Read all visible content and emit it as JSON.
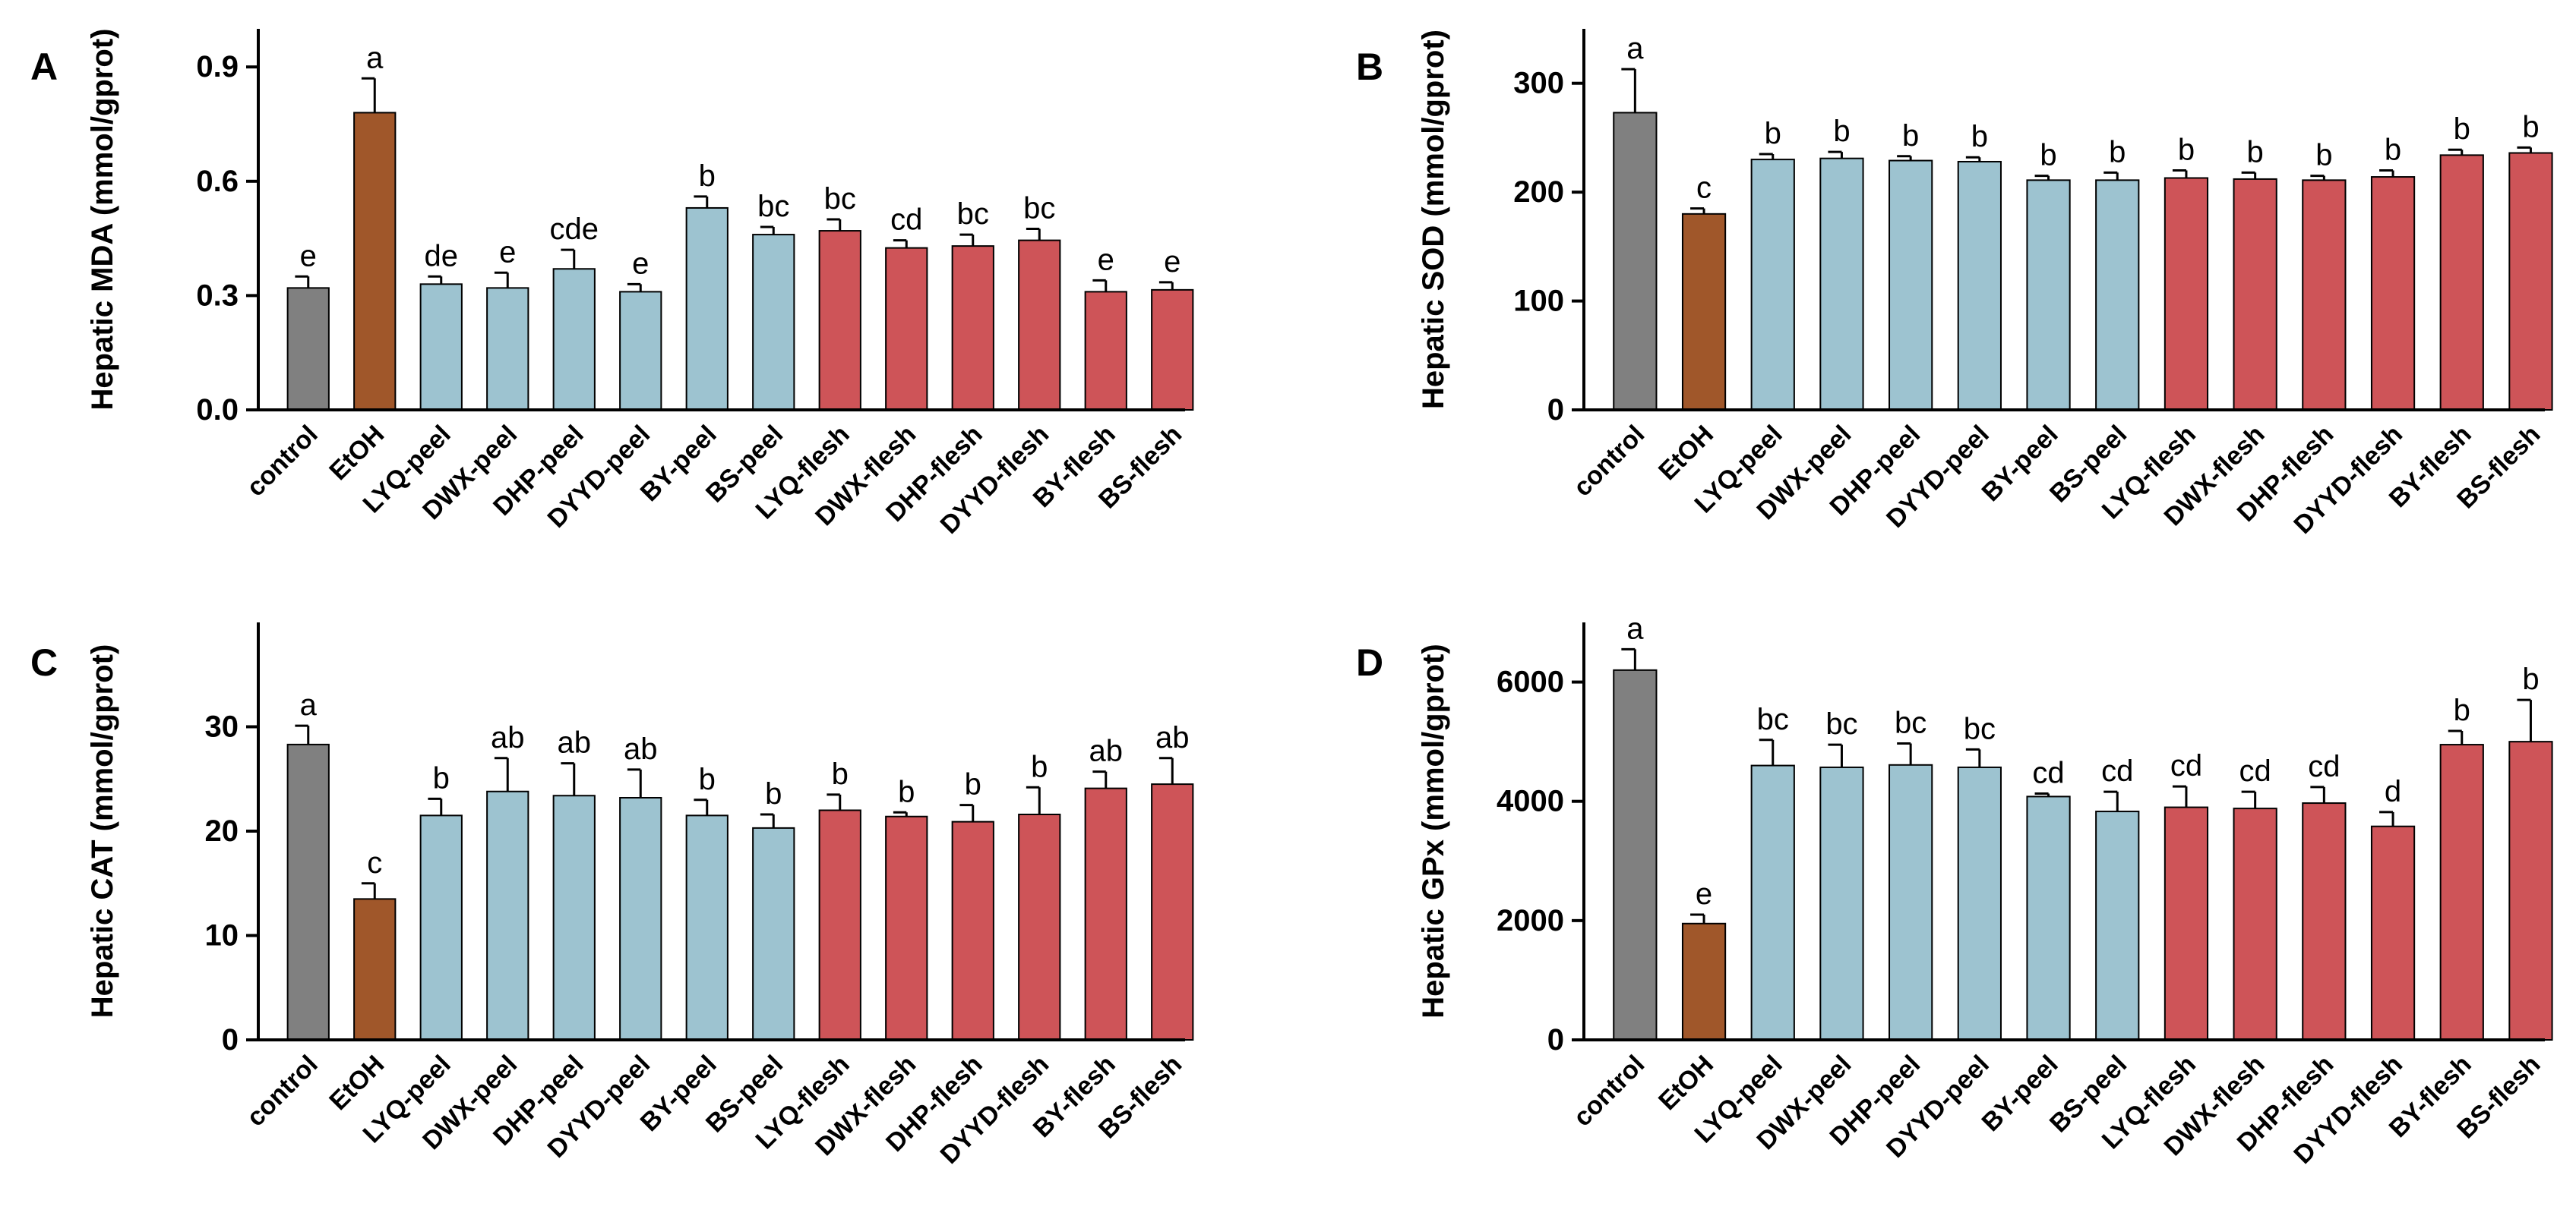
{
  "colors": {
    "control": "#808080",
    "etoh": "#A0572A",
    "peel": "#9DC3D0",
    "flesh": "#CE5458",
    "axis": "#000000"
  },
  "chart_data": [
    {
      "panel": "A",
      "type": "bar",
      "ylabel": "Hepatic MDA (mmol/gprot)",
      "ylim": [
        0,
        1.0
      ],
      "yticks": [
        0.0,
        0.3,
        0.6,
        0.9
      ],
      "ytick_labels": [
        "0.0",
        "0.3",
        "0.6",
        "0.9"
      ],
      "categories": [
        "control",
        "EtOH",
        "LYQ-peel",
        "DWX-peel",
        "DHP-peel",
        "DYYD-peel",
        "BY-peel",
        "BS-peel",
        "LYQ-flesh",
        "DWX-flesh",
        "DHP-flesh",
        "DYYD-flesh",
        "BY-flesh",
        "BS-flesh"
      ],
      "groups": [
        "control",
        "etoh",
        "peel",
        "peel",
        "peel",
        "peel",
        "peel",
        "peel",
        "flesh",
        "flesh",
        "flesh",
        "flesh",
        "flesh",
        "flesh"
      ],
      "values": [
        0.32,
        0.78,
        0.33,
        0.32,
        0.37,
        0.31,
        0.53,
        0.46,
        0.47,
        0.425,
        0.43,
        0.445,
        0.31,
        0.315
      ],
      "errors": [
        0.03,
        0.09,
        0.02,
        0.04,
        0.05,
        0.02,
        0.03,
        0.02,
        0.03,
        0.02,
        0.03,
        0.03,
        0.03,
        0.02
      ],
      "sig_labels": [
        "e",
        "a",
        "de",
        "e",
        "cde",
        "e",
        "b",
        "bc",
        "bc",
        "cd",
        "bc",
        "bc",
        "e",
        "e"
      ]
    },
    {
      "panel": "B",
      "type": "bar",
      "ylabel": "Hepatic SOD (mmol/gprot)",
      "ylim": [
        0,
        350
      ],
      "yticks": [
        0,
        100,
        200,
        300
      ],
      "ytick_labels": [
        "0",
        "100",
        "200",
        "300"
      ],
      "categories": [
        "control",
        "EtOH",
        "LYQ-peel",
        "DWX-peel",
        "DHP-peel",
        "DYYD-peel",
        "BY-peel",
        "BS-peel",
        "LYQ-flesh",
        "DWX-flesh",
        "DHP-flesh",
        "DYYD-flesh",
        "BY-flesh",
        "BS-flesh"
      ],
      "groups": [
        "control",
        "etoh",
        "peel",
        "peel",
        "peel",
        "peel",
        "peel",
        "peel",
        "flesh",
        "flesh",
        "flesh",
        "flesh",
        "flesh",
        "flesh"
      ],
      "values": [
        273,
        180,
        230,
        231,
        229,
        228,
        211,
        211,
        213,
        212,
        211,
        214,
        234,
        236
      ],
      "errors": [
        40,
        5,
        5,
        6,
        4,
        4,
        4,
        7,
        7,
        6,
        4,
        6,
        5,
        5
      ],
      "sig_labels": [
        "a",
        "c",
        "b",
        "b",
        "b",
        "b",
        "b",
        "b",
        "b",
        "b",
        "b",
        "b",
        "b",
        "b"
      ]
    },
    {
      "panel": "C",
      "type": "bar",
      "ylabel": "Hepatic CAT (mmol/gprot)",
      "ylim": [
        0,
        40
      ],
      "yticks": [
        0,
        10,
        20,
        30
      ],
      "ytick_labels": [
        "0",
        "10",
        "20",
        "30"
      ],
      "categories": [
        "control",
        "EtOH",
        "LYQ-peel",
        "DWX-peel",
        "DHP-peel",
        "DYYD-peel",
        "BY-peel",
        "BS-peel",
        "LYQ-flesh",
        "DWX-flesh",
        "DHP-flesh",
        "DYYD-flesh",
        "BY-flesh",
        "BS-flesh"
      ],
      "groups": [
        "control",
        "etoh",
        "peel",
        "peel",
        "peel",
        "peel",
        "peel",
        "peel",
        "flesh",
        "flesh",
        "flesh",
        "flesh",
        "flesh",
        "flesh"
      ],
      "values": [
        28.3,
        13.5,
        21.5,
        23.8,
        23.4,
        23.2,
        21.5,
        20.3,
        22.0,
        21.4,
        20.9,
        21.6,
        24.1,
        24.5
      ],
      "errors": [
        1.8,
        1.5,
        1.6,
        3.2,
        3.1,
        2.7,
        1.5,
        1.3,
        1.5,
        0.4,
        1.6,
        2.6,
        1.6,
        2.5
      ],
      "sig_labels": [
        "a",
        "c",
        "b",
        "ab",
        "ab",
        "ab",
        "b",
        "b",
        "b",
        "b",
        "b",
        "b",
        "ab",
        "ab"
      ]
    },
    {
      "panel": "D",
      "type": "bar",
      "ylabel": "Hepatic GPx (mmol/gprot)",
      "ylim": [
        0,
        7000
      ],
      "yticks": [
        0,
        2000,
        4000,
        6000
      ],
      "ytick_labels": [
        "0",
        "2000",
        "4000",
        "6000"
      ],
      "categories": [
        "control",
        "EtOH",
        "LYQ-peel",
        "DWX-peel",
        "DHP-peel",
        "DYYD-peel",
        "BY-peel",
        "BS-peel",
        "LYQ-flesh",
        "DWX-flesh",
        "DHP-flesh",
        "DYYD-flesh",
        "BY-flesh",
        "BS-flesh"
      ],
      "groups": [
        "control",
        "etoh",
        "peel",
        "peel",
        "peel",
        "peel",
        "peel",
        "peel",
        "flesh",
        "flesh",
        "flesh",
        "flesh",
        "flesh",
        "flesh"
      ],
      "values": [
        6200,
        1950,
        4600,
        4570,
        4610,
        4570,
        4080,
        3830,
        3900,
        3880,
        3970,
        3580,
        4950,
        5000
      ],
      "errors": [
        350,
        150,
        430,
        380,
        360,
        300,
        50,
        330,
        350,
        280,
        270,
        240,
        230,
        700
      ],
      "sig_labels": [
        "a",
        "e",
        "bc",
        "bc",
        "bc",
        "bc",
        "cd",
        "cd",
        "cd",
        "cd",
        "cd",
        "d",
        "b",
        "b"
      ]
    }
  ]
}
